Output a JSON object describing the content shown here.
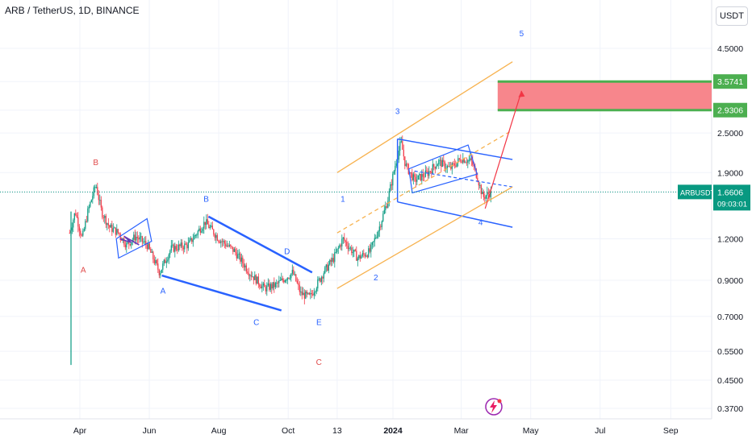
{
  "header": {
    "symbol_title": "ARB / TetherUS, 1D, BINANCE",
    "currency_button": "USDT"
  },
  "price_tag": {
    "symbol": "ARBUSDT",
    "price": "1.6606",
    "countdown": "09:03:01",
    "color": "#089981"
  },
  "target_zone": {
    "upper": "3.5741",
    "lower": "2.9306",
    "fill": "#f7868c",
    "edge": "#4caf50"
  },
  "colors": {
    "up": "#089981",
    "down": "#f23645",
    "wave_blue": "#2962ff",
    "channel_orange": "#f7b24f",
    "label_red": "#e04a4a",
    "label_blue": "#2962ff",
    "arrow_red": "#f23645"
  },
  "icons": {
    "event": "lightning-icon"
  },
  "chart_data": {
    "type": "candlestick",
    "scale": "log",
    "y_ticks": [
      "4.5000",
      "3.5741",
      "2.9306",
      "2.5000",
      "1.9000",
      "1.6606",
      "1.2000",
      "0.9000",
      "0.7000",
      "0.5500",
      "0.4500",
      "0.3700"
    ],
    "x_ticks": [
      "Apr",
      "Jun",
      "Aug",
      "Oct",
      "13",
      "2024",
      "Mar",
      "May",
      "Jul",
      "Sep"
    ],
    "last_price": 1.6606,
    "wave_labels": [
      {
        "text": "A",
        "color": "red"
      },
      {
        "text": "B",
        "color": "red"
      },
      {
        "text": "C",
        "color": "red"
      },
      {
        "text": "A",
        "color": "blue"
      },
      {
        "text": "B",
        "color": "blue"
      },
      {
        "text": "C",
        "color": "blue"
      },
      {
        "text": "D",
        "color": "blue"
      },
      {
        "text": "E",
        "color": "blue"
      },
      {
        "text": "1",
        "color": "blue"
      },
      {
        "text": "2",
        "color": "blue"
      },
      {
        "text": "3",
        "color": "blue"
      },
      {
        "text": "4",
        "color": "blue"
      },
      {
        "text": "5",
        "color": "blue"
      }
    ],
    "price_path": [
      [
        "2023-03-23",
        1.25
      ],
      [
        "2023-03-28",
        1.45
      ],
      [
        "2023-04-03",
        1.2
      ],
      [
        "2023-04-08",
        1.45
      ],
      [
        "2023-04-15",
        1.75
      ],
      [
        "2023-04-20",
        1.45
      ],
      [
        "2023-04-27",
        1.3
      ],
      [
        "2023-05-05",
        1.25
      ],
      [
        "2023-05-12",
        1.15
      ],
      [
        "2023-05-20",
        1.22
      ],
      [
        "2023-05-30",
        1.15
      ],
      [
        "2023-06-10",
        0.95
      ],
      [
        "2023-06-20",
        1.12
      ],
      [
        "2023-07-05",
        1.15
      ],
      [
        "2023-07-20",
        1.35
      ],
      [
        "2023-08-01",
        1.2
      ],
      [
        "2023-08-15",
        1.1
      ],
      [
        "2023-08-28",
        0.95
      ],
      [
        "2023-09-10",
        0.85
      ],
      [
        "2023-09-20",
        0.87
      ],
      [
        "2023-10-05",
        0.95
      ],
      [
        "2023-10-12",
        0.82
      ],
      [
        "2023-10-20",
        0.8
      ],
      [
        "2023-11-01",
        0.95
      ],
      [
        "2023-11-10",
        1.05
      ],
      [
        "2023-11-18",
        1.2
      ],
      [
        "2023-12-01",
        1.05
      ],
      [
        "2023-12-12",
        1.1
      ],
      [
        "2023-12-20",
        1.3
      ],
      [
        "2023-12-27",
        1.55
      ],
      [
        "2024-01-03",
        2.0
      ],
      [
        "2024-01-08",
        2.35
      ],
      [
        "2024-01-12",
        2.0
      ],
      [
        "2024-01-20",
        1.8
      ],
      [
        "2024-02-01",
        1.9
      ],
      [
        "2024-02-10",
        2.05
      ],
      [
        "2024-02-20",
        1.95
      ],
      [
        "2024-03-01",
        2.1
      ],
      [
        "2024-03-10",
        2.05
      ],
      [
        "2024-03-15",
        1.85
      ],
      [
        "2024-03-20",
        1.6
      ],
      [
        "2024-03-27",
        1.66
      ]
    ]
  }
}
